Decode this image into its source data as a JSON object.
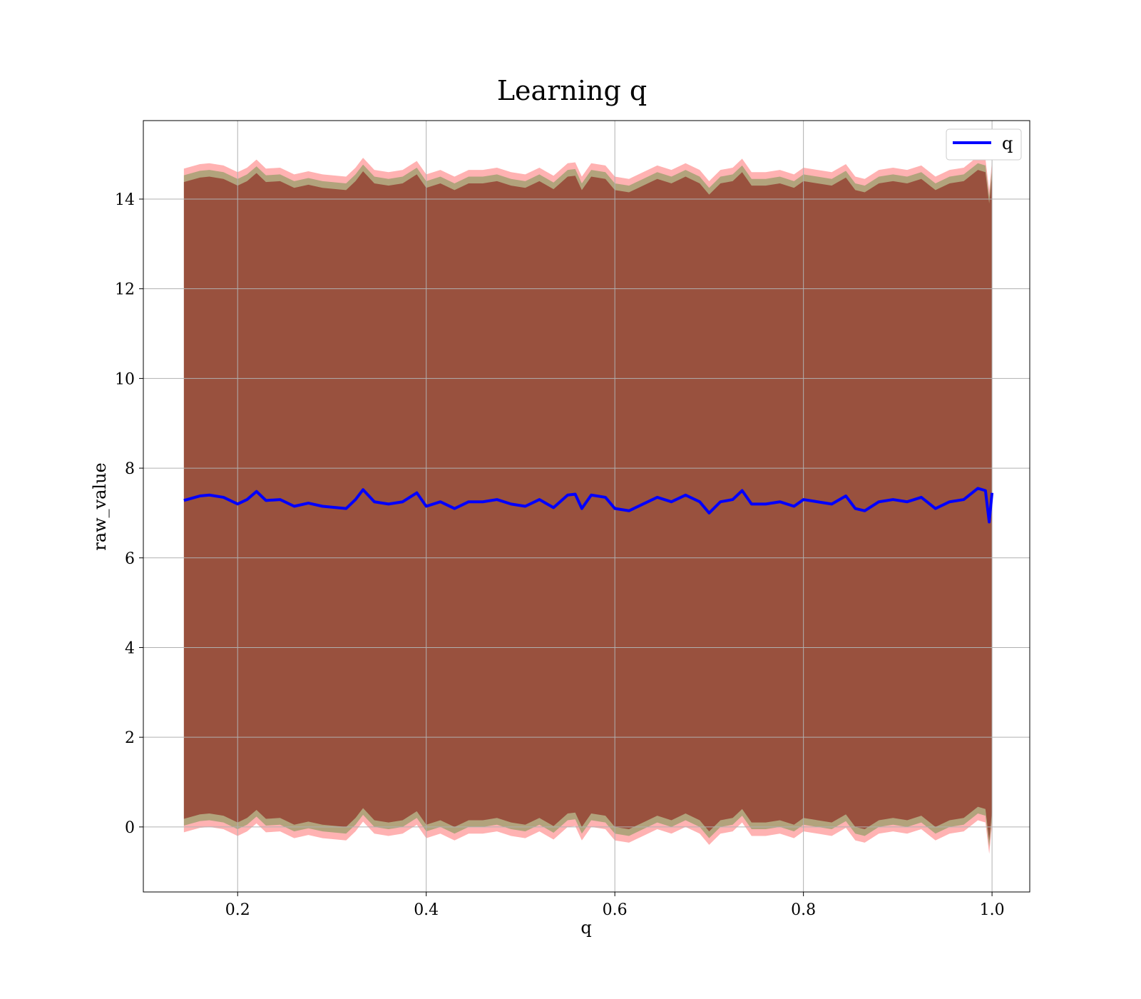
{
  "chart_data": {
    "type": "line",
    "title": "Learning q",
    "xlabel": "q",
    "ylabel": "raw_value",
    "xlim": [
      0.1,
      1.04
    ],
    "ylim": [
      -1.45,
      15.75
    ],
    "xticks": [
      0.2,
      0.4,
      0.6,
      0.8,
      1.0
    ],
    "xtick_labels": [
      "0.2",
      "0.4",
      "0.6",
      "0.8",
      "1.0"
    ],
    "yticks": [
      0,
      2,
      4,
      6,
      8,
      10,
      12,
      14
    ],
    "ytick_labels": [
      "0",
      "2",
      "4",
      "6",
      "8",
      "10",
      "12",
      "14"
    ],
    "grid": true,
    "legend": {
      "position": "top-right",
      "entries": [
        "q"
      ]
    },
    "series": [
      {
        "name": "q",
        "color": "#0000ff",
        "x": [
          0.143,
          0.16,
          0.17,
          0.185,
          0.2,
          0.21,
          0.22,
          0.23,
          0.245,
          0.26,
          0.275,
          0.29,
          0.305,
          0.315,
          0.325,
          0.333,
          0.345,
          0.36,
          0.375,
          0.39,
          0.4,
          0.415,
          0.43,
          0.445,
          0.46,
          0.475,
          0.49,
          0.505,
          0.52,
          0.535,
          0.55,
          0.558,
          0.565,
          0.575,
          0.59,
          0.6,
          0.615,
          0.63,
          0.645,
          0.66,
          0.675,
          0.69,
          0.7,
          0.712,
          0.725,
          0.735,
          0.745,
          0.76,
          0.775,
          0.79,
          0.8,
          0.815,
          0.83,
          0.845,
          0.855,
          0.865,
          0.88,
          0.895,
          0.91,
          0.925,
          0.94,
          0.955,
          0.97,
          0.985,
          0.993,
          0.997,
          1.0
        ],
        "values": [
          7.28,
          7.38,
          7.4,
          7.35,
          7.2,
          7.3,
          7.48,
          7.28,
          7.3,
          7.15,
          7.22,
          7.15,
          7.12,
          7.1,
          7.3,
          7.52,
          7.25,
          7.2,
          7.25,
          7.45,
          7.15,
          7.25,
          7.1,
          7.25,
          7.25,
          7.3,
          7.2,
          7.15,
          7.3,
          7.12,
          7.4,
          7.42,
          7.1,
          7.4,
          7.35,
          7.1,
          7.05,
          7.2,
          7.35,
          7.25,
          7.4,
          7.25,
          7.0,
          7.25,
          7.3,
          7.5,
          7.2,
          7.2,
          7.25,
          7.15,
          7.3,
          7.25,
          7.2,
          7.38,
          7.1,
          7.05,
          7.25,
          7.3,
          7.25,
          7.35,
          7.1,
          7.25,
          7.3,
          7.55,
          7.5,
          6.8,
          7.45
        ]
      }
    ],
    "bands": [
      {
        "color": "#ff0000",
        "opacity": 0.3,
        "half_width": 7.4
      },
      {
        "color": "#008000",
        "opacity": 0.3,
        "half_width": 7.25
      },
      {
        "color": "#800000",
        "opacity": 0.5,
        "half_width": 7.1
      }
    ]
  }
}
